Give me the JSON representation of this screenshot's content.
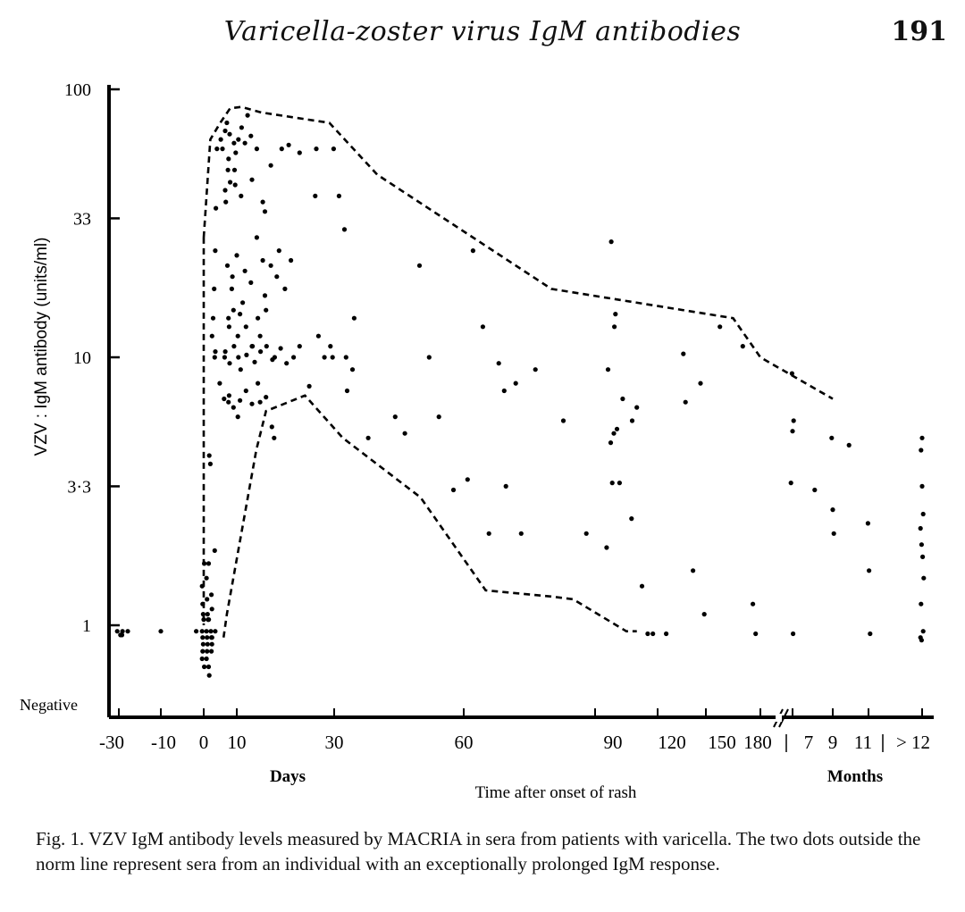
{
  "header": {
    "running_title": "Varicella-zoster virus IgM antibodies",
    "page_number": "191"
  },
  "caption": "Fig. 1. VZV IgM antibody levels measured by MACRIA in sera from patients with varicella. The two dots outside the norm line represent sera from an individual with an exceptionally prolonged IgM response.",
  "chart_data": {
    "type": "scatter",
    "title": "",
    "xlabel": "Time after onset of rash",
    "x_unit_labels": {
      "days": "Days",
      "months": "Months"
    },
    "ylabel": "VZV : IgM antibody (units/ml)",
    "y_scale": "log",
    "ylim": [
      0.55,
      100
    ],
    "y_ticks": [
      {
        "value": 1,
        "label": "1"
      },
      {
        "value": 3.3,
        "label": "3·3"
      },
      {
        "value": 10,
        "label": "10"
      },
      {
        "value": 33,
        "label": "33"
      },
      {
        "value": 100,
        "label": "100"
      }
    ],
    "y_negative_label": "Negative",
    "x_ticks": [
      "-30",
      "-10",
      "0",
      "10",
      "30",
      "60",
      "90",
      "120",
      "150",
      "180",
      "7",
      "9",
      "11",
      "> 12"
    ],
    "x_axis_break": "between 180 days and 7 months",
    "norm_band": {
      "upper": [
        [
          "0",
          28
        ],
        [
          "2",
          65
        ],
        [
          "5",
          75
        ],
        [
          "8",
          85
        ],
        [
          "11",
          86
        ],
        [
          "15",
          82
        ],
        [
          "29",
          75
        ],
        [
          "40",
          48
        ],
        [
          "80",
          18
        ],
        [
          "165",
          14
        ],
        [
          "180",
          10
        ],
        [
          "9 mo",
          7
        ]
      ],
      "lower": [
        [
          "6",
          0.9
        ],
        [
          "7",
          1.1
        ],
        [
          "14",
          4.5
        ],
        [
          "16",
          6.3
        ],
        [
          "24",
          7.2
        ],
        [
          "32",
          5
        ],
        [
          "50",
          3
        ],
        [
          "65",
          1.35
        ],
        [
          "80",
          1.28
        ],
        [
          "85",
          1.25
        ],
        [
          "105",
          0.95
        ],
        [
          "110",
          0.95
        ]
      ]
    },
    "points": [
      [
        "-30",
        0.95
      ],
      [
        "-28",
        0.95
      ],
      [
        "-26",
        0.95
      ],
      [
        "-30",
        0.92
      ],
      [
        "-28",
        0.92
      ],
      [
        "-10",
        0.95
      ],
      [
        "-2",
        0.95
      ],
      [
        "0",
        0.95
      ],
      [
        "1",
        0.95
      ],
      [
        "2",
        0.95
      ],
      [
        "3",
        0.95
      ],
      [
        "0",
        0.9
      ],
      [
        "1",
        0.9
      ],
      [
        "2",
        0.9
      ],
      [
        "3",
        0.9
      ],
      [
        "0",
        0.85
      ],
      [
        "1",
        0.85
      ],
      [
        "2",
        0.85
      ],
      [
        "0",
        0.8
      ],
      [
        "1",
        0.8
      ],
      [
        "2",
        0.8
      ],
      [
        "0",
        0.75
      ],
      [
        "1",
        0.75
      ],
      [
        "0",
        0.7
      ],
      [
        "1",
        0.7
      ],
      [
        "2",
        0.65
      ],
      [
        "0",
        1.05
      ],
      [
        "1",
        1.05
      ],
      [
        "2",
        1.05
      ],
      [
        "0",
        1.1
      ],
      [
        "1",
        1.1
      ],
      [
        "2",
        1.15
      ],
      [
        "0",
        1.2
      ],
      [
        "1",
        1.25
      ],
      [
        "2",
        1.3
      ],
      [
        "0",
        1.4
      ],
      [
        "1",
        1.5
      ],
      [
        "0",
        1.7
      ],
      [
        "1",
        1.7
      ],
      [
        "2",
        4.3
      ],
      [
        "2",
        4.0
      ],
      [
        "3",
        1.9
      ],
      [
        "3",
        12
      ],
      [
        "3",
        14
      ],
      [
        "3",
        18
      ],
      [
        "3",
        25
      ],
      [
        "4",
        36
      ],
      [
        "4",
        60
      ],
      [
        "3",
        10
      ],
      [
        "4",
        10.5
      ],
      [
        "5",
        8
      ],
      [
        "5",
        65
      ],
      [
        "6",
        70
      ],
      [
        "6",
        60
      ],
      [
        "7",
        75
      ],
      [
        "7",
        50
      ],
      [
        "8",
        55
      ],
      [
        "8",
        68
      ],
      [
        "9",
        63
      ],
      [
        "10",
        65
      ],
      [
        "10",
        58
      ],
      [
        "11",
        72
      ],
      [
        "12",
        80
      ],
      [
        "12",
        63
      ],
      [
        "13",
        67
      ],
      [
        "14",
        60
      ],
      [
        "6",
        42
      ],
      [
        "7",
        38
      ],
      [
        "8",
        45
      ],
      [
        "9",
        50
      ],
      [
        "10",
        44
      ],
      [
        "11",
        40
      ],
      [
        "13",
        46
      ],
      [
        "15",
        38
      ],
      [
        "16",
        35
      ],
      [
        "17",
        52
      ],
      [
        "19",
        60
      ],
      [
        "21",
        62
      ],
      [
        "23",
        58
      ],
      [
        "7",
        22
      ],
      [
        "8",
        18
      ],
      [
        "9",
        20
      ],
      [
        "10",
        24
      ],
      [
        "11",
        16
      ],
      [
        "12",
        21
      ],
      [
        "13",
        19
      ],
      [
        "14",
        28
      ],
      [
        "15",
        23
      ],
      [
        "16",
        17
      ],
      [
        "17",
        22
      ],
      [
        "18",
        20
      ],
      [
        "19",
        25
      ],
      [
        "20",
        18
      ],
      [
        "21",
        23
      ],
      [
        "7",
        14
      ],
      [
        "8",
        13
      ],
      [
        "9",
        15
      ],
      [
        "10",
        12
      ],
      [
        "11",
        14.5
      ],
      [
        "12",
        13
      ],
      [
        "13",
        11
      ],
      [
        "14",
        14
      ],
      [
        "15",
        12
      ],
      [
        "16",
        15
      ],
      [
        "6",
        10
      ],
      [
        "7",
        10.5
      ],
      [
        "8",
        9.5
      ],
      [
        "9",
        11
      ],
      [
        "10",
        10
      ],
      [
        "11",
        9
      ],
      [
        "12",
        10.2
      ],
      [
        "13",
        11
      ],
      [
        "14",
        9.6
      ],
      [
        "15",
        10.5
      ],
      [
        "16",
        11
      ],
      [
        "17",
        9.8
      ],
      [
        "18",
        10
      ],
      [
        "19",
        10.8
      ],
      [
        "20",
        9.5
      ],
      [
        "22",
        10
      ],
      [
        "23",
        11
      ],
      [
        "6",
        7
      ],
      [
        "7",
        6.8
      ],
      [
        "8",
        7.2
      ],
      [
        "9",
        6.5
      ],
      [
        "10",
        6
      ],
      [
        "11",
        6.9
      ],
      [
        "12",
        7.5
      ],
      [
        "13",
        6.7
      ],
      [
        "14",
        8
      ],
      [
        "15",
        6.8
      ],
      [
        "16",
        7.1
      ],
      [
        "17",
        5.5
      ],
      [
        "18",
        5
      ],
      [
        "25",
        7.8
      ],
      [
        "26",
        40
      ],
      [
        "26",
        60
      ],
      [
        "27",
        12
      ],
      [
        "28",
        10
      ],
      [
        "29",
        11
      ],
      [
        "30",
        10
      ],
      [
        "30",
        60
      ],
      [
        "31",
        40
      ],
      [
        "32",
        30
      ],
      [
        "33",
        10
      ],
      [
        "33",
        7.5
      ],
      [
        "34",
        9
      ],
      [
        "35",
        14
      ],
      [
        "38",
        5
      ],
      [
        "44",
        6
      ],
      [
        "46",
        5.2
      ],
      [
        "50",
        22
      ],
      [
        "52",
        10
      ],
      [
        "54",
        6
      ],
      [
        "58",
        3.2
      ],
      [
        "61",
        3.5
      ],
      [
        "62",
        25
      ],
      [
        "64",
        13
      ],
      [
        "66",
        2.2
      ],
      [
        "68",
        9.5
      ],
      [
        "69",
        7.5
      ],
      [
        "70",
        3.3
      ],
      [
        "72",
        8
      ],
      [
        "73",
        2.2
      ],
      [
        "76",
        9
      ],
      [
        "83",
        5.8
      ],
      [
        "88",
        2.2
      ],
      [
        "95",
        1.95
      ],
      [
        "97",
        9
      ],
      [
        "98",
        27
      ],
      [
        "99",
        13
      ],
      [
        "99",
        14.5
      ],
      [
        "98",
        4.8
      ],
      [
        "99",
        5.2
      ],
      [
        "100",
        5.4
      ],
      [
        "99",
        3.4
      ],
      [
        "102",
        3.4
      ],
      [
        "103",
        7
      ],
      [
        "107",
        5.8
      ],
      [
        "108",
        2.5
      ],
      [
        "110",
        6.5
      ],
      [
        "112",
        1.4
      ],
      [
        "116",
        0.93
      ],
      [
        "118",
        0.93
      ],
      [
        "125",
        0.93
      ],
      [
        "135",
        10.3
      ],
      [
        "138",
        6.8
      ],
      [
        "142",
        1.6
      ],
      [
        "146",
        8
      ],
      [
        "150",
        1.1
      ],
      [
        "158",
        13
      ],
      [
        "170",
        11
      ],
      [
        "175",
        1.2
      ],
      [
        "178",
        0.93
      ],
      [
        "7 mo",
        5.3
      ],
      [
        "7 mo",
        5.8
      ],
      [
        "7 mo",
        3.4
      ],
      [
        "7 mo",
        8.7
      ],
      [
        "7 mo",
        0.93
      ],
      [
        "8 mo",
        3.2
      ],
      [
        "9 mo",
        5
      ],
      [
        "9 mo",
        2.7
      ],
      [
        "9 mo",
        2.2
      ],
      [
        "10 mo",
        4.7
      ],
      [
        "11 mo",
        2.4
      ],
      [
        "11 mo",
        1.6
      ],
      [
        "11 mo",
        0.93
      ],
      [
        "> 12",
        4.5
      ],
      [
        "> 12",
        3.3
      ],
      [
        "> 12",
        2.6
      ],
      [
        "> 12",
        2.3
      ],
      [
        "> 12",
        2.0
      ],
      [
        "> 12",
        1.8
      ],
      [
        "> 12",
        1.5
      ],
      [
        "> 12",
        1.2
      ],
      [
        "> 12",
        5
      ],
      [
        "> 12",
        0.95
      ],
      [
        "> 12",
        0.9
      ],
      [
        "> 12",
        0.88
      ]
    ]
  }
}
